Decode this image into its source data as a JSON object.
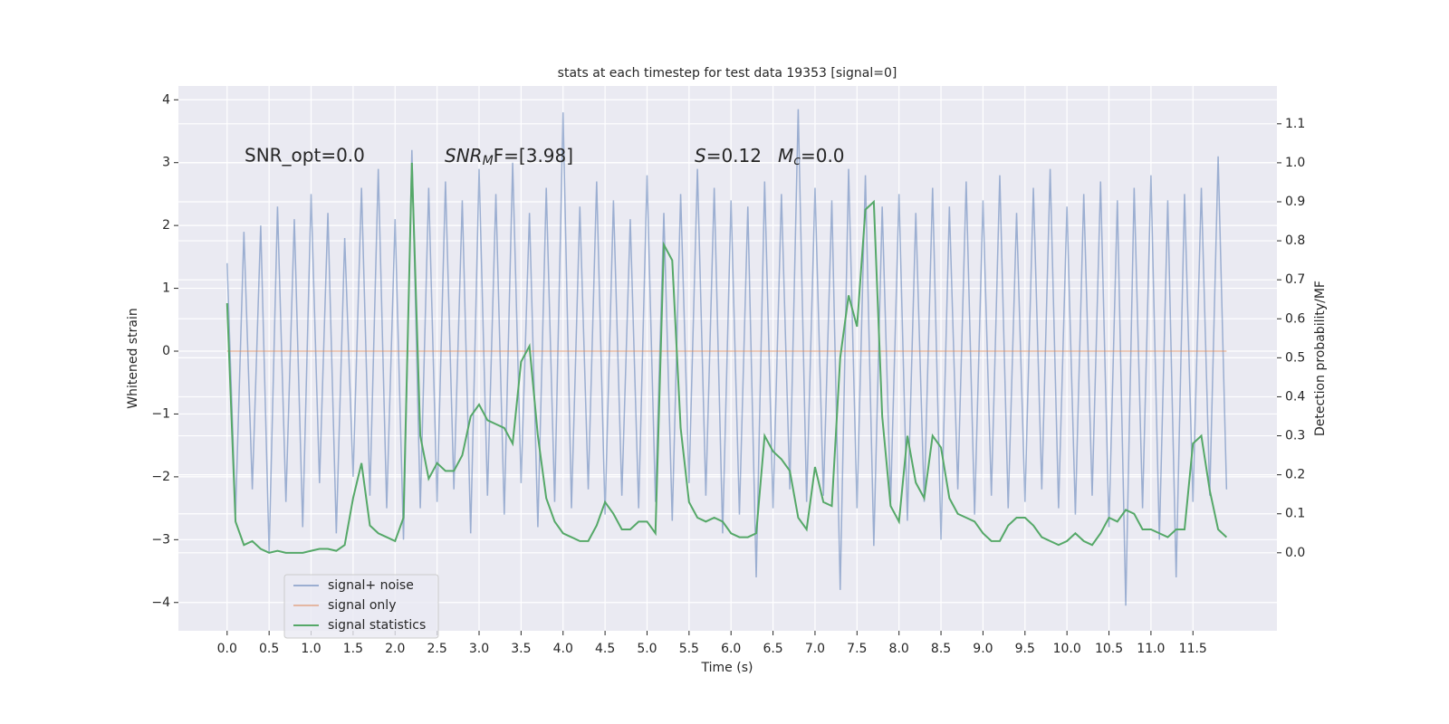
{
  "chart_data": {
    "type": "line",
    "title": "stats at each timestep for test data 19353 [signal=0]",
    "xlabel": "Time (s)",
    "ylabel": "Whitened strain",
    "y2label": "Detection probability/MF",
    "annotations": {
      "snr_opt": "SNR_opt=0.0",
      "snr_mf": [
        "SNR",
        "M",
        "F=[3.98]"
      ],
      "s": [
        "S",
        "=0.12"
      ],
      "mc": [
        "M",
        "c",
        "=0.0"
      ]
    },
    "grid": true,
    "legend": "lower left",
    "xlim": [
      -0.58,
      12.5
    ],
    "ylim": [
      -4.45,
      4.22
    ],
    "y2lim": [
      -0.2,
      1.197
    ],
    "xticks": [
      {
        "value": 0,
        "label": "0.0"
      },
      0.5,
      {
        "value": 1,
        "label": "1.0"
      },
      1.5,
      {
        "value": 2,
        "label": "2.0"
      },
      2.5,
      {
        "value": 3,
        "label": "3.0"
      },
      3.5,
      {
        "value": 4,
        "label": "4.0"
      },
      4.5,
      {
        "value": 5,
        "label": "5.0"
      },
      5.5,
      {
        "value": 6,
        "label": "6.0"
      },
      6.5,
      {
        "value": 7,
        "label": "7.0"
      },
      7.5,
      {
        "value": 8,
        "label": "8.0"
      },
      8.5,
      {
        "value": 9,
        "label": "9.0"
      },
      9.5,
      {
        "value": 10,
        "label": "10.0"
      },
      10.5,
      {
        "value": 11,
        "label": "11.0"
      },
      11.5
    ],
    "yticks": [
      {
        "value": -4,
        "label": "−4"
      },
      {
        "value": -3,
        "label": "−3"
      },
      {
        "value": -2,
        "label": "−2"
      },
      {
        "value": -1,
        "label": "−1"
      },
      0,
      1,
      2,
      3,
      4
    ],
    "y2ticks": [
      {
        "value": 0,
        "label": "0.0"
      },
      0.1,
      0.2,
      0.3,
      0.4,
      0.5,
      0.6,
      0.7,
      0.8,
      0.9,
      {
        "value": 1,
        "label": "1.0"
      },
      1.1
    ],
    "x": [
      0,
      0.1,
      0.2,
      0.3,
      0.4,
      0.5,
      0.6,
      0.7,
      0.8,
      0.9,
      1,
      1.1,
      1.2,
      1.3,
      1.4,
      1.5,
      1.6,
      1.7,
      1.8,
      1.9,
      2,
      2.1,
      2.2,
      2.3,
      2.4,
      2.5,
      2.6,
      2.7,
      2.8,
      2.9,
      3,
      3.1,
      3.2,
      3.3,
      3.4,
      3.5,
      3.6,
      3.7,
      3.8,
      3.9,
      4,
      4.1,
      4.2,
      4.3,
      4.4,
      4.5,
      4.6,
      4.7,
      4.8,
      4.9,
      5,
      5.1,
      5.2,
      5.3,
      5.4,
      5.5,
      5.6,
      5.7,
      5.8,
      5.9,
      6,
      6.1,
      6.2,
      6.3,
      6.4,
      6.5,
      6.6,
      6.7,
      6.8,
      6.9,
      7,
      7.1,
      7.2,
      7.3,
      7.4,
      7.5,
      7.6,
      7.7,
      7.8,
      7.9,
      8,
      8.1,
      8.2,
      8.3,
      8.4,
      8.5,
      8.6,
      8.7,
      8.8,
      8.9,
      9,
      9.1,
      9.2,
      9.3,
      9.4,
      9.5,
      9.6,
      9.7,
      9.8,
      9.9,
      10,
      10.1,
      10.2,
      10.3,
      10.4,
      10.5,
      10.6,
      10.7,
      10.8,
      10.9,
      11,
      11.1,
      11.2,
      11.3,
      11.4,
      11.5,
      11.6,
      11.7,
      11.8,
      11.9
    ],
    "series": [
      {
        "name": "signal+ noise",
        "color": "#4c72b0",
        "values": [
          1.4,
          -2.6,
          1.9,
          -2.2,
          2.0,
          -3.2,
          2.3,
          -2.4,
          2.1,
          -2.8,
          2.5,
          -2.1,
          2.2,
          -2.9,
          1.8,
          -2.0,
          2.6,
          -2.3,
          2.9,
          -2.5,
          2.1,
          -3.0,
          3.2,
          -2.5,
          2.6,
          -2.4,
          2.7,
          -2.2,
          2.4,
          -2.9,
          2.9,
          -2.3,
          2.5,
          -2.6,
          3.0,
          -2.1,
          2.2,
          -2.8,
          2.6,
          -2.4,
          3.8,
          -2.5,
          2.3,
          -2.2,
          2.7,
          -2.6,
          2.4,
          -2.3,
          2.1,
          -2.5,
          2.8,
          -2.4,
          2.2,
          -2.7,
          2.5,
          -2.1,
          2.9,
          -2.3,
          2.6,
          -2.9,
          2.4,
          -2.6,
          2.3,
          -3.6,
          2.7,
          -2.5,
          2.5,
          -2.2,
          3.85,
          -2.4,
          2.6,
          -2.3,
          2.4,
          -3.8,
          2.9,
          -2.5,
          2.8,
          -3.1,
          2.3,
          -2.4,
          2.5,
          -2.7,
          2.2,
          -2.4,
          2.6,
          -3.0,
          2.3,
          -2.2,
          2.7,
          -2.6,
          2.4,
          -2.3,
          2.8,
          -2.5,
          2.2,
          -2.4,
          2.6,
          -2.2,
          2.9,
          -2.5,
          2.3,
          -2.6,
          2.5,
          -2.3,
          2.7,
          -2.8,
          2.4,
          -4.05,
          2.6,
          -2.5,
          2.8,
          -3.0,
          2.4,
          -3.6,
          2.5,
          -2.4,
          2.6,
          -2.3,
          3.1,
          -2.2
        ]
      },
      {
        "name": "signal only",
        "color": "#dd8452",
        "values": [
          0,
          0,
          0,
          0,
          0,
          0,
          0,
          0,
          0,
          0,
          0,
          0,
          0,
          0,
          0,
          0,
          0,
          0,
          0,
          0,
          0,
          0,
          0,
          0,
          0,
          0,
          0,
          0,
          0,
          0,
          0,
          0,
          0,
          0,
          0,
          0,
          0,
          0,
          0,
          0,
          0,
          0,
          0,
          0,
          0,
          0,
          0,
          0,
          0,
          0,
          0,
          0,
          0,
          0,
          0,
          0,
          0,
          0,
          0,
          0,
          0,
          0,
          0,
          0,
          0,
          0,
          0,
          0,
          0,
          0,
          0,
          0,
          0,
          0,
          0,
          0,
          0,
          0,
          0,
          0,
          0,
          0,
          0,
          0,
          0,
          0,
          0,
          0,
          0,
          0,
          0,
          0,
          0,
          0,
          0,
          0,
          0,
          0,
          0,
          0,
          0,
          0,
          0,
          0,
          0,
          0,
          0,
          0,
          0,
          0,
          0,
          0,
          0,
          0,
          0,
          0,
          0,
          0,
          0,
          0
        ]
      },
      {
        "name": "signal statistics",
        "color": "#55a868",
        "axis": "y2",
        "values": [
          0.64,
          0.08,
          0.02,
          0.03,
          0.01,
          0,
          0.005,
          0,
          0,
          0,
          0.005,
          0.01,
          0.01,
          0.005,
          0.02,
          0.14,
          0.23,
          0.07,
          0.05,
          0.04,
          0.03,
          0.09,
          1.0,
          0.3,
          0.19,
          0.23,
          0.21,
          0.21,
          0.25,
          0.35,
          0.38,
          0.34,
          0.33,
          0.32,
          0.28,
          0.49,
          0.53,
          0.3,
          0.14,
          0.08,
          0.05,
          0.04,
          0.03,
          0.03,
          0.07,
          0.13,
          0.1,
          0.06,
          0.06,
          0.08,
          0.08,
          0.05,
          0.79,
          0.75,
          0.32,
          0.13,
          0.09,
          0.08,
          0.09,
          0.08,
          0.05,
          0.04,
          0.04,
          0.05,
          0.3,
          0.26,
          0.24,
          0.21,
          0.09,
          0.06,
          0.22,
          0.13,
          0.12,
          0.5,
          0.66,
          0.58,
          0.88,
          0.9,
          0.35,
          0.12,
          0.08,
          0.3,
          0.18,
          0.14,
          0.3,
          0.27,
          0.14,
          0.1,
          0.09,
          0.08,
          0.05,
          0.03,
          0.03,
          0.07,
          0.09,
          0.09,
          0.07,
          0.04,
          0.03,
          0.02,
          0.03,
          0.05,
          0.03,
          0.02,
          0.05,
          0.09,
          0.08,
          0.11,
          0.1,
          0.06,
          0.06,
          0.05,
          0.04,
          0.06,
          0.06,
          0.28,
          0.3,
          0.16,
          0.06,
          0.04
        ]
      }
    ]
  }
}
